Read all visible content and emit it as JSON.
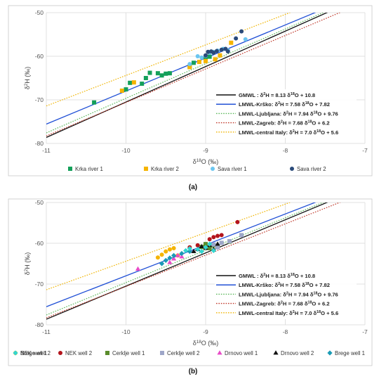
{
  "panels": [
    {
      "panel_label": "(a)",
      "chart_data": {
        "type": "scatter",
        "xlabel": "δ18O (‰)",
        "ylabel": "δ2H (‰)",
        "xlim": [
          -11,
          -7
        ],
        "ylim": [
          -80,
          -50
        ],
        "x_ticks": [
          -11,
          -10,
          -9,
          -8,
          -7
        ],
        "y_ticks": [
          -80,
          -70,
          -60,
          -50
        ],
        "grid": "major, both axes",
        "legend_position": "inside lower-right (lines); below plot (points)",
        "lines": [
          {
            "key": "gmwl",
            "label": "GMWL : δ 2H = 8.13 δ 18O + 10.8",
            "slope": 8.13,
            "intercept": 10.8,
            "color": "#111111",
            "dash": "solid"
          },
          {
            "key": "krsko",
            "label": "LMWL-Krško: δ 2H = 7.58 δ 18O + 7.82",
            "slope": 7.58,
            "intercept": 7.82,
            "color": "#2251d6",
            "dash": "solid"
          },
          {
            "key": "ljubljana",
            "label": "LMWL-Ljubljana: δ 2H = 7.94 δ 18O + 9.76",
            "slope": 7.94,
            "intercept": 9.76,
            "color": "#5cb85c",
            "dash": "dotted"
          },
          {
            "key": "zagreb",
            "label": "LMWL-Zagreb: δ 2H = 7.68 δ 18O + 6.2",
            "slope": 7.68,
            "intercept": 6.2,
            "color": "#c0392b",
            "dash": "dotted"
          },
          {
            "key": "italy",
            "label": "LMWL-central Italy: δ 2H = 7.0 δ 18O + 5.6",
            "slope": 7.0,
            "intercept": 5.6,
            "color": "#f0b400",
            "dash": "dotted"
          }
        ],
        "series": [
          {
            "name": "Krka river 1",
            "marker": "square",
            "color": "#14a05a",
            "points": [
              [
                -10.4,
                -70.6
              ],
              [
                -10.0,
                -67.6
              ],
              [
                -9.95,
                -66.1
              ],
              [
                -9.8,
                -66.3
              ],
              [
                -9.75,
                -65.0
              ],
              [
                -9.7,
                -63.8
              ],
              [
                -9.6,
                -63.9
              ],
              [
                -9.55,
                -64.4
              ],
              [
                -9.5,
                -64.0
              ],
              [
                -9.45,
                -63.9
              ],
              [
                -9.2,
                -62.4
              ],
              [
                -9.15,
                -61.5
              ],
              [
                -9.0,
                -60.6
              ],
              [
                -8.95,
                -60.1
              ]
            ]
          },
          {
            "name": "Krka river 2",
            "marker": "square",
            "color": "#f5b400",
            "points": [
              [
                -10.05,
                -67.9
              ],
              [
                -9.9,
                -66.0
              ],
              [
                -9.2,
                -62.5
              ],
              [
                -9.08,
                -61.3
              ],
              [
                -9.0,
                -61.1
              ],
              [
                -8.88,
                -60.7
              ],
              [
                -8.82,
                -59.8
              ],
              [
                -8.68,
                -56.9
              ]
            ]
          },
          {
            "name": "Sava river 1",
            "marker": "circle",
            "color": "#6cc6f0",
            "points": [
              [
                -9.2,
                -61.8
              ],
              [
                -9.1,
                -60.0
              ],
              [
                -9.05,
                -60.3
              ],
              [
                -9.0,
                -59.9
              ],
              [
                -8.95,
                -59.2
              ],
              [
                -8.9,
                -59.0
              ],
              [
                -8.85,
                -58.7
              ],
              [
                -8.78,
                -58.3
              ],
              [
                -8.72,
                -58.6
              ],
              [
                -8.5,
                -56.1
              ]
            ]
          },
          {
            "name": "Sava river 2",
            "marker": "circle",
            "color": "#2a4a7a",
            "points": [
              [
                -9.0,
                -59.8
              ],
              [
                -8.97,
                -59.0
              ],
              [
                -8.93,
                -58.9
              ],
              [
                -8.9,
                -59.2
              ],
              [
                -8.86,
                -58.8
              ],
              [
                -8.8,
                -58.5
              ],
              [
                -8.75,
                -58.3
              ],
              [
                -8.72,
                -58.9
              ],
              [
                -8.62,
                -55.9
              ],
              [
                -8.55,
                -54.3
              ]
            ]
          }
        ]
      }
    },
    {
      "panel_label": "(b)",
      "chart_data": {
        "type": "scatter",
        "xlabel": "δ18O (‰)",
        "ylabel": "δ2H (‰)",
        "xlim": [
          -11,
          -7
        ],
        "ylim": [
          -80,
          -50
        ],
        "x_ticks": [
          -11,
          -10,
          -9,
          -8,
          -7
        ],
        "y_ticks": [
          -80,
          -70,
          -60,
          -50
        ],
        "grid": "major, both axes",
        "legend_position": "inside lower-right (lines); below plot (points)",
        "lines": [
          {
            "key": "gmwl",
            "label": "GMWL : δ 2H = 8.13 δ 18O + 10.8",
            "slope": 8.13,
            "intercept": 10.8,
            "color": "#111111",
            "dash": "solid"
          },
          {
            "key": "krsko",
            "label": "LMWL-Krško: δ 2H = 7.58 δ 18O + 7.82",
            "slope": 7.58,
            "intercept": 7.82,
            "color": "#2251d6",
            "dash": "solid"
          },
          {
            "key": "ljubljana",
            "label": "LMWL-Ljubljana: δ 2H = 7.94 δ 18O + 9.76",
            "slope": 7.94,
            "intercept": 9.76,
            "color": "#5cb85c",
            "dash": "dotted"
          },
          {
            "key": "zagreb",
            "label": "LMWL-Zagreb: δ 2H = 7.68 δ 18O + 6.2",
            "slope": 7.68,
            "intercept": 6.2,
            "color": "#c0392b",
            "dash": "dotted"
          },
          {
            "key": "italy",
            "label": "LMWL-central Italy: δ 2H = 7.0 δ 18O + 5.6",
            "slope": 7.0,
            "intercept": 5.6,
            "color": "#f0b400",
            "dash": "dotted"
          }
        ],
        "series": [
          {
            "name": "NEK well 1",
            "marker": "circle",
            "color": "#f5b400",
            "points": [
              [
                -9.6,
                -63.5
              ],
              [
                -9.55,
                -62.8
              ],
              [
                -9.5,
                -62.0
              ],
              [
                -9.45,
                -61.5
              ],
              [
                -9.4,
                -61.2
              ],
              [
                -9.35,
                -63.0
              ]
            ]
          },
          {
            "name": "NEK well 2",
            "marker": "circle",
            "color": "#b3141c",
            "points": [
              [
                -9.2,
                -61.0
              ],
              [
                -9.1,
                -60.5
              ],
              [
                -9.0,
                -60.4
              ],
              [
                -8.95,
                -59.0
              ],
              [
                -8.9,
                -58.5
              ],
              [
                -8.85,
                -58.2
              ],
              [
                -8.8,
                -58.0
              ],
              [
                -8.6,
                -54.8
              ]
            ]
          },
          {
            "name": "Cerklje well 1",
            "marker": "square",
            "color": "#5a8c2c",
            "points": [
              [
                -9.05,
                -60.9
              ],
              [
                -9.0,
                -60.2
              ],
              [
                -8.95,
                -61.2
              ],
              [
                -8.9,
                -60.5
              ],
              [
                -8.85,
                -60.8
              ],
              [
                -8.7,
                -59.6
              ]
            ]
          },
          {
            "name": "Cerklje well 2",
            "marker": "square",
            "color": "#9ea6c8",
            "points": [
              [
                -8.9,
                -60.3
              ],
              [
                -8.85,
                -61.0
              ],
              [
                -8.8,
                -59.9
              ],
              [
                -8.7,
                -59.5
              ],
              [
                -8.55,
                -58.0
              ]
            ]
          },
          {
            "name": "Drnovo well 1",
            "marker": "triangle",
            "color": "#e84bc8",
            "points": [
              [
                -9.85,
                -66.3
              ],
              [
                -9.45,
                -64.7
              ],
              [
                -9.4,
                -63.8
              ],
              [
                -9.35,
                -63.0
              ],
              [
                -9.3,
                -63.3
              ]
            ]
          },
          {
            "name": "Drnovo well 2",
            "marker": "triangle",
            "color": "#111111",
            "points": [
              [
                -9.15,
                -62.0
              ],
              [
                -9.1,
                -61.5
              ],
              [
                -9.05,
                -60.8
              ],
              [
                -9.0,
                -61.2
              ],
              [
                -8.95,
                -60.5
              ],
              [
                -8.9,
                -61.5
              ],
              [
                -8.85,
                -60.2
              ]
            ]
          },
          {
            "name": "Brege well 1",
            "marker": "diamond",
            "color": "#1a9bb5",
            "points": [
              [
                -9.55,
                -65.0
              ],
              [
                -9.5,
                -64.2
              ],
              [
                -9.45,
                -63.6
              ],
              [
                -9.4,
                -63.0
              ],
              [
                -9.3,
                -62.5
              ],
              [
                -9.2,
                -62.0
              ]
            ]
          },
          {
            "name": "Brege well 2",
            "marker": "diamond",
            "color": "#33d6d0",
            "points": [
              [
                -9.25,
                -61.8
              ],
              [
                -9.2,
                -61.3
              ],
              [
                -9.1,
                -61.5
              ],
              [
                -9.05,
                -62.0
              ],
              [
                -9.0,
                -61.0
              ],
              [
                -8.95,
                -60.2
              ],
              [
                -8.9,
                -61.8
              ]
            ]
          }
        ]
      }
    }
  ]
}
